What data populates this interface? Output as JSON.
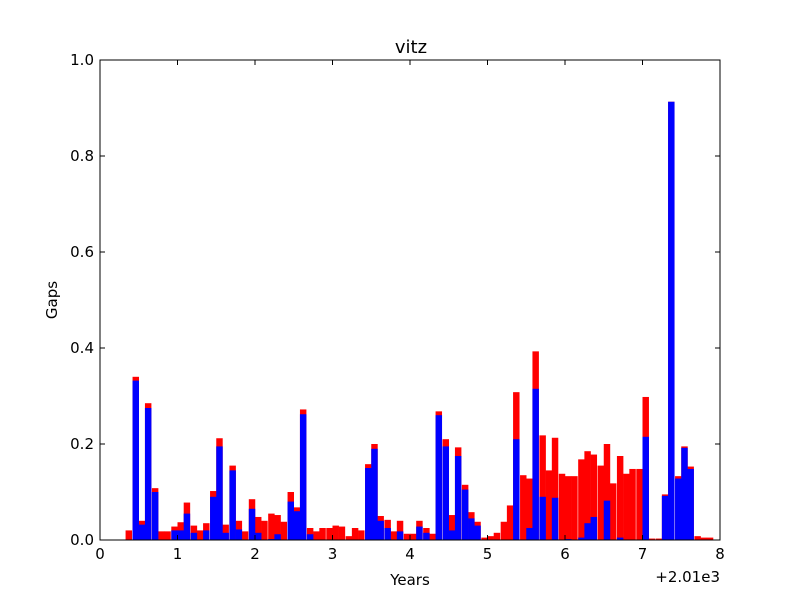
{
  "chart_data": {
    "type": "bar",
    "title": "vitz",
    "xlabel": "Years",
    "ylabel": "Gaps",
    "x_offset_text": "+2.01e3",
    "xlim": [
      0,
      8
    ],
    "ylim": [
      0,
      1.0
    ],
    "x_ticks": [
      "0",
      "1",
      "2",
      "3",
      "4",
      "5",
      "6",
      "7",
      "8"
    ],
    "y_ticks": [
      "0.0",
      "0.2",
      "0.4",
      "0.6",
      "0.8",
      "1.0"
    ],
    "grid": false,
    "bin_width": 0.0833,
    "colors": {
      "total": "#ff0000",
      "inner": "#0000ff"
    },
    "x": [
      0.33,
      0.42,
      0.5,
      0.58,
      0.67,
      0.75,
      0.83,
      0.92,
      1.0,
      1.08,
      1.17,
      1.25,
      1.33,
      1.42,
      1.5,
      1.58,
      1.67,
      1.75,
      1.83,
      1.92,
      2.0,
      2.08,
      2.17,
      2.25,
      2.33,
      2.42,
      2.5,
      2.58,
      2.67,
      2.75,
      2.83,
      2.92,
      3.0,
      3.08,
      3.17,
      3.25,
      3.33,
      3.42,
      3.5,
      3.58,
      3.67,
      3.75,
      3.83,
      3.92,
      4.0,
      4.08,
      4.17,
      4.25,
      4.33,
      4.42,
      4.5,
      4.58,
      4.67,
      4.75,
      4.83,
      4.92,
      5.0,
      5.08,
      5.17,
      5.25,
      5.33,
      5.42,
      5.5,
      5.58,
      5.67,
      5.75,
      5.83,
      5.92,
      6.0,
      6.08,
      6.17,
      6.25,
      6.33,
      6.42,
      6.5,
      6.58,
      6.67,
      6.75,
      6.83,
      6.92,
      7.0,
      7.08,
      7.17,
      7.25,
      7.33,
      7.42,
      7.5,
      7.58,
      7.67,
      7.75,
      7.83
    ],
    "series": [
      {
        "values": [
          0.02,
          0.34,
          0.04,
          0.285,
          0.108,
          0.018,
          0.018,
          0.028,
          0.037,
          0.078,
          0.03,
          0.02,
          0.035,
          0.102,
          0.212,
          0.032,
          0.155,
          0.04,
          0.018,
          0.085,
          0.048,
          0.04,
          0.055,
          0.052,
          0.038,
          0.1,
          0.068,
          0.272,
          0.025,
          0.018,
          0.025,
          0.025,
          0.03,
          0.028,
          0.008,
          0.025,
          0.02,
          0.158,
          0.2,
          0.05,
          0.042,
          0.018,
          0.04,
          0.013,
          0.013,
          0.04,
          0.025,
          0.013,
          0.268,
          0.21,
          0.052,
          0.193,
          0.115,
          0.058,
          0.038,
          0.005,
          0.008,
          0.015,
          0.038,
          0.072,
          0.308,
          0.135,
          0.128,
          0.393,
          0.218,
          0.145,
          0.213,
          0.138,
          0.133,
          0.133,
          0.168,
          0.185,
          0.178,
          0.155,
          0.2,
          0.118,
          0.175,
          0.138,
          0.148,
          0.148,
          0.298,
          0.003,
          0.003,
          0.095,
          0.913,
          0.133,
          0.195,
          0.153,
          0.008,
          0.005,
          0.005
        ]
      },
      {
        "values": [
          0,
          0.332,
          0.032,
          0.275,
          0.1,
          0,
          0,
          0.02,
          0.02,
          0.055,
          0.015,
          0,
          0.02,
          0.09,
          0.195,
          0.015,
          0.145,
          0.022,
          0,
          0.065,
          0.015,
          0,
          0.002,
          0.012,
          0,
          0.08,
          0.06,
          0.262,
          0.012,
          0,
          0,
          0,
          0,
          0,
          0,
          0,
          0,
          0.15,
          0.19,
          0.04,
          0.025,
          0,
          0.018,
          0,
          0,
          0.028,
          0.015,
          0,
          0.26,
          0.195,
          0.02,
          0.175,
          0.105,
          0.045,
          0.03,
          0,
          0,
          0,
          0,
          0,
          0.21,
          0,
          0.025,
          0.315,
          0.09,
          0,
          0.088,
          0,
          0.002,
          0,
          0.005,
          0.035,
          0.048,
          0,
          0.082,
          0,
          0.005,
          0,
          0,
          0,
          0.215,
          0,
          0,
          0.092,
          0.913,
          0.128,
          0.192,
          0.148,
          0,
          0,
          0
        ]
      }
    ]
  }
}
